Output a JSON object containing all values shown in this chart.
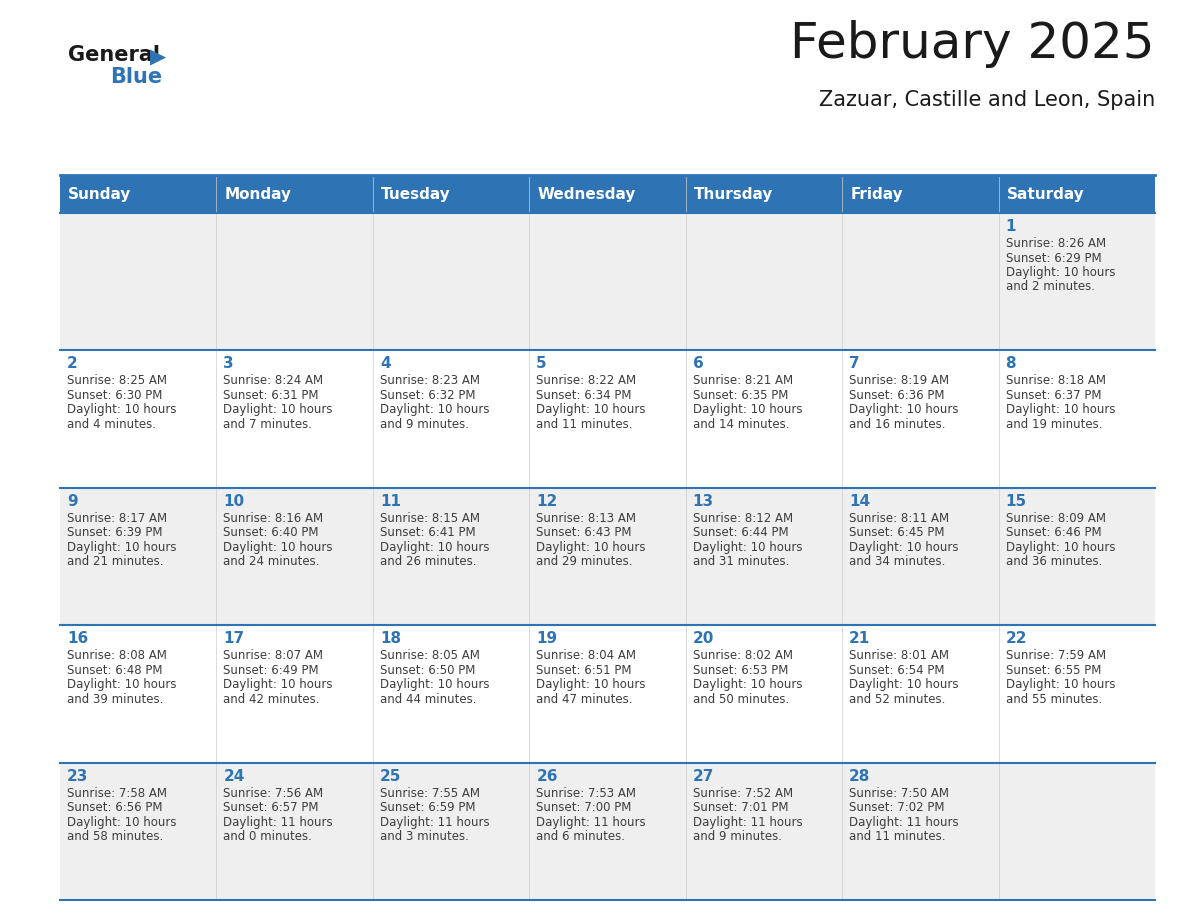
{
  "title": "February 2025",
  "subtitle": "Zazuar, Castille and Leon, Spain",
  "header_color": "#2E74B5",
  "header_text_color": "#FFFFFF",
  "day_names": [
    "Sunday",
    "Monday",
    "Tuesday",
    "Wednesday",
    "Thursday",
    "Friday",
    "Saturday"
  ],
  "cell_bg_even": "#EFEFEF",
  "cell_bg_odd": "#FFFFFF",
  "border_color": "#2E74B5",
  "day_num_color": "#2E74B5",
  "text_color": "#3D3D3D",
  "logo_general_color": "#1A1A1A",
  "logo_blue_color": "#2E74B5",
  "title_fontsize": 36,
  "subtitle_fontsize": 15,
  "header_fontsize": 11,
  "day_num_fontsize": 11,
  "cell_text_fontsize": 8.5,
  "days": [
    {
      "date": 1,
      "col": 6,
      "row": 0,
      "sunrise": "8:26 AM",
      "sunset": "6:29 PM",
      "daylight": "10 hours and 2 minutes"
    },
    {
      "date": 2,
      "col": 0,
      "row": 1,
      "sunrise": "8:25 AM",
      "sunset": "6:30 PM",
      "daylight": "10 hours and 4 minutes"
    },
    {
      "date": 3,
      "col": 1,
      "row": 1,
      "sunrise": "8:24 AM",
      "sunset": "6:31 PM",
      "daylight": "10 hours and 7 minutes"
    },
    {
      "date": 4,
      "col": 2,
      "row": 1,
      "sunrise": "8:23 AM",
      "sunset": "6:32 PM",
      "daylight": "10 hours and 9 minutes"
    },
    {
      "date": 5,
      "col": 3,
      "row": 1,
      "sunrise": "8:22 AM",
      "sunset": "6:34 PM",
      "daylight": "10 hours and 11 minutes"
    },
    {
      "date": 6,
      "col": 4,
      "row": 1,
      "sunrise": "8:21 AM",
      "sunset": "6:35 PM",
      "daylight": "10 hours and 14 minutes"
    },
    {
      "date": 7,
      "col": 5,
      "row": 1,
      "sunrise": "8:19 AM",
      "sunset": "6:36 PM",
      "daylight": "10 hours and 16 minutes"
    },
    {
      "date": 8,
      "col": 6,
      "row": 1,
      "sunrise": "8:18 AM",
      "sunset": "6:37 PM",
      "daylight": "10 hours and 19 minutes"
    },
    {
      "date": 9,
      "col": 0,
      "row": 2,
      "sunrise": "8:17 AM",
      "sunset": "6:39 PM",
      "daylight": "10 hours and 21 minutes"
    },
    {
      "date": 10,
      "col": 1,
      "row": 2,
      "sunrise": "8:16 AM",
      "sunset": "6:40 PM",
      "daylight": "10 hours and 24 minutes"
    },
    {
      "date": 11,
      "col": 2,
      "row": 2,
      "sunrise": "8:15 AM",
      "sunset": "6:41 PM",
      "daylight": "10 hours and 26 minutes"
    },
    {
      "date": 12,
      "col": 3,
      "row": 2,
      "sunrise": "8:13 AM",
      "sunset": "6:43 PM",
      "daylight": "10 hours and 29 minutes"
    },
    {
      "date": 13,
      "col": 4,
      "row": 2,
      "sunrise": "8:12 AM",
      "sunset": "6:44 PM",
      "daylight": "10 hours and 31 minutes"
    },
    {
      "date": 14,
      "col": 5,
      "row": 2,
      "sunrise": "8:11 AM",
      "sunset": "6:45 PM",
      "daylight": "10 hours and 34 minutes"
    },
    {
      "date": 15,
      "col": 6,
      "row": 2,
      "sunrise": "8:09 AM",
      "sunset": "6:46 PM",
      "daylight": "10 hours and 36 minutes"
    },
    {
      "date": 16,
      "col": 0,
      "row": 3,
      "sunrise": "8:08 AM",
      "sunset": "6:48 PM",
      "daylight": "10 hours and 39 minutes"
    },
    {
      "date": 17,
      "col": 1,
      "row": 3,
      "sunrise": "8:07 AM",
      "sunset": "6:49 PM",
      "daylight": "10 hours and 42 minutes"
    },
    {
      "date": 18,
      "col": 2,
      "row": 3,
      "sunrise": "8:05 AM",
      "sunset": "6:50 PM",
      "daylight": "10 hours and 44 minutes"
    },
    {
      "date": 19,
      "col": 3,
      "row": 3,
      "sunrise": "8:04 AM",
      "sunset": "6:51 PM",
      "daylight": "10 hours and 47 minutes"
    },
    {
      "date": 20,
      "col": 4,
      "row": 3,
      "sunrise": "8:02 AM",
      "sunset": "6:53 PM",
      "daylight": "10 hours and 50 minutes"
    },
    {
      "date": 21,
      "col": 5,
      "row": 3,
      "sunrise": "8:01 AM",
      "sunset": "6:54 PM",
      "daylight": "10 hours and 52 minutes"
    },
    {
      "date": 22,
      "col": 6,
      "row": 3,
      "sunrise": "7:59 AM",
      "sunset": "6:55 PM",
      "daylight": "10 hours and 55 minutes"
    },
    {
      "date": 23,
      "col": 0,
      "row": 4,
      "sunrise": "7:58 AM",
      "sunset": "6:56 PM",
      "daylight": "10 hours and 58 minutes"
    },
    {
      "date": 24,
      "col": 1,
      "row": 4,
      "sunrise": "7:56 AM",
      "sunset": "6:57 PM",
      "daylight": "11 hours and 0 minutes"
    },
    {
      "date": 25,
      "col": 2,
      "row": 4,
      "sunrise": "7:55 AM",
      "sunset": "6:59 PM",
      "daylight": "11 hours and 3 minutes"
    },
    {
      "date": 26,
      "col": 3,
      "row": 4,
      "sunrise": "7:53 AM",
      "sunset": "7:00 PM",
      "daylight": "11 hours and 6 minutes"
    },
    {
      "date": 27,
      "col": 4,
      "row": 4,
      "sunrise": "7:52 AM",
      "sunset": "7:01 PM",
      "daylight": "11 hours and 9 minutes"
    },
    {
      "date": 28,
      "col": 5,
      "row": 4,
      "sunrise": "7:50 AM",
      "sunset": "7:02 PM",
      "daylight": "11 hours and 11 minutes"
    }
  ]
}
